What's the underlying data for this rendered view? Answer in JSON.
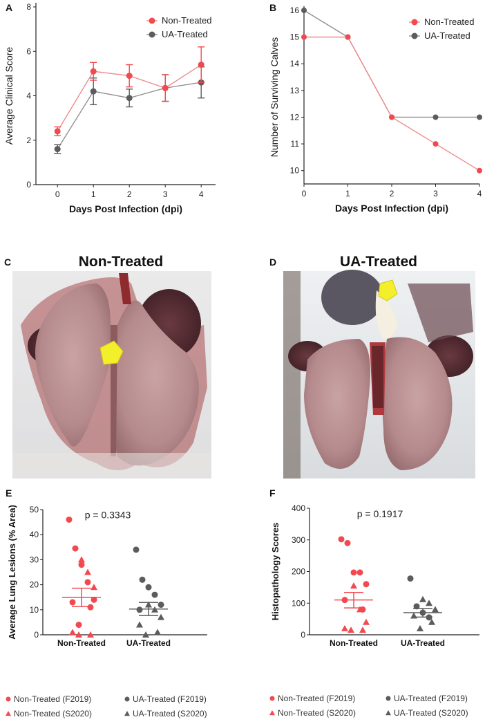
{
  "colors": {
    "non_treated": "#f04a50",
    "ua_treated": "#5c5c5c",
    "non_treated_line": "#f08a8e",
    "ua_treated_line": "#909090",
    "axis": "#222222"
  },
  "chart_data": [
    {
      "panel": "A",
      "type": "line",
      "ylabel": "Average Clinical Score",
      "xlabel": "Days Post Infection (dpi)",
      "x": [
        0,
        1,
        2,
        3,
        4
      ],
      "xlim": [
        -0.6,
        4.4
      ],
      "ylim": [
        0,
        8
      ],
      "xticks": [
        "0",
        "1",
        "2",
        "3",
        "4"
      ],
      "yticks": [
        "0",
        "2",
        "4",
        "6",
        "8"
      ],
      "legend": [
        "Non-Treated",
        "UA-Treated"
      ],
      "series": [
        {
          "name": "Non-Treated",
          "values": [
            2.4,
            5.1,
            4.9,
            4.35,
            5.4
          ],
          "err": [
            0.2,
            0.4,
            0.5,
            0.6,
            0.8
          ]
        },
        {
          "name": "UA-Treated",
          "values": [
            1.6,
            4.2,
            3.9,
            4.35,
            4.6
          ],
          "err": [
            0.2,
            0.6,
            0.4,
            0.6,
            0.7
          ]
        }
      ]
    },
    {
      "panel": "B",
      "type": "line",
      "ylabel": "Number of Surviving Calves",
      "xlabel": "Days Post Infection (dpi)",
      "x": [
        0,
        1,
        2,
        3,
        4
      ],
      "xlim": [
        0,
        4
      ],
      "ylim": [
        9.5,
        16
      ],
      "xticks": [
        "0",
        "1",
        "2",
        "3",
        "4"
      ],
      "yticks": [
        "10",
        "11",
        "12",
        "13",
        "14",
        "15",
        "16"
      ],
      "legend": [
        "Non-Treated",
        "UA-Treated"
      ],
      "series": [
        {
          "name": "Non-Treated",
          "values": [
            15,
            15,
            12,
            11,
            10
          ]
        },
        {
          "name": "UA-Treated",
          "values": [
            16,
            15,
            12,
            12,
            12
          ]
        }
      ]
    },
    {
      "panel": "E",
      "type": "scatter",
      "ylabel": "Average Lung Lesions (% Area)",
      "categories": [
        "Non-Treated",
        "UA-Treated"
      ],
      "ylim": [
        0,
        50
      ],
      "yticks": [
        "0",
        "10",
        "20",
        "30",
        "40",
        "50"
      ],
      "annotation": "p = 0.3343",
      "groups": [
        {
          "name": "Non-Treated",
          "mean": 15,
          "sem_low": 11.3,
          "sem_high": 18.6,
          "f2019": [
            46,
            34.5,
            28,
            21,
            14,
            13,
            11,
            4
          ],
          "s2020": [
            30,
            25,
            19,
            1,
            0,
            0
          ]
        },
        {
          "name": "UA-Treated",
          "mean": 10.3,
          "sem_low": 7.7,
          "sem_high": 12.9,
          "f2019": [
            34,
            22,
            19,
            16,
            12,
            10
          ],
          "s2020": [
            12,
            10,
            7,
            4,
            1,
            0
          ]
        }
      ],
      "legend": [
        "Non-Treated (F2019)",
        "UA-Treated (F2019)",
        "Non-Treated (S2020)",
        "UA-Treated (S2020)"
      ]
    },
    {
      "panel": "F",
      "type": "scatter",
      "ylabel": "Histopathology Scores",
      "categories": [
        "Non-Treated",
        "UA-Treated"
      ],
      "ylim": [
        0,
        400
      ],
      "yticks": [
        "0",
        "100",
        "200",
        "300",
        "400"
      ],
      "annotation": "p = 0.1917",
      "groups": [
        {
          "name": "Non-Treated",
          "mean": 110,
          "sem_low": 85,
          "sem_high": 134,
          "f2019": [
            302,
            290,
            197,
            197,
            160,
            110,
            80
          ],
          "s2020": [
            155,
            80,
            40,
            20,
            15,
            15
          ]
        },
        {
          "name": "UA-Treated",
          "mean": 70,
          "sem_low": 56,
          "sem_high": 83,
          "f2019": [
            178,
            90,
            70,
            55
          ],
          "s2020": [
            112,
            100,
            80,
            60,
            40,
            20
          ]
        }
      ],
      "legend": [
        "Non-Treated (F2019)",
        "UA-Treated (F2019)",
        "Non-Treated (S2020)",
        "UA-Treated (S2020)"
      ]
    }
  ],
  "photos": {
    "c": {
      "letter": "C",
      "title": "Non-Treated"
    },
    "d": {
      "letter": "D",
      "title": "UA-Treated"
    }
  },
  "panels": {
    "a": "A",
    "b": "B",
    "e": "E",
    "f": "F"
  }
}
